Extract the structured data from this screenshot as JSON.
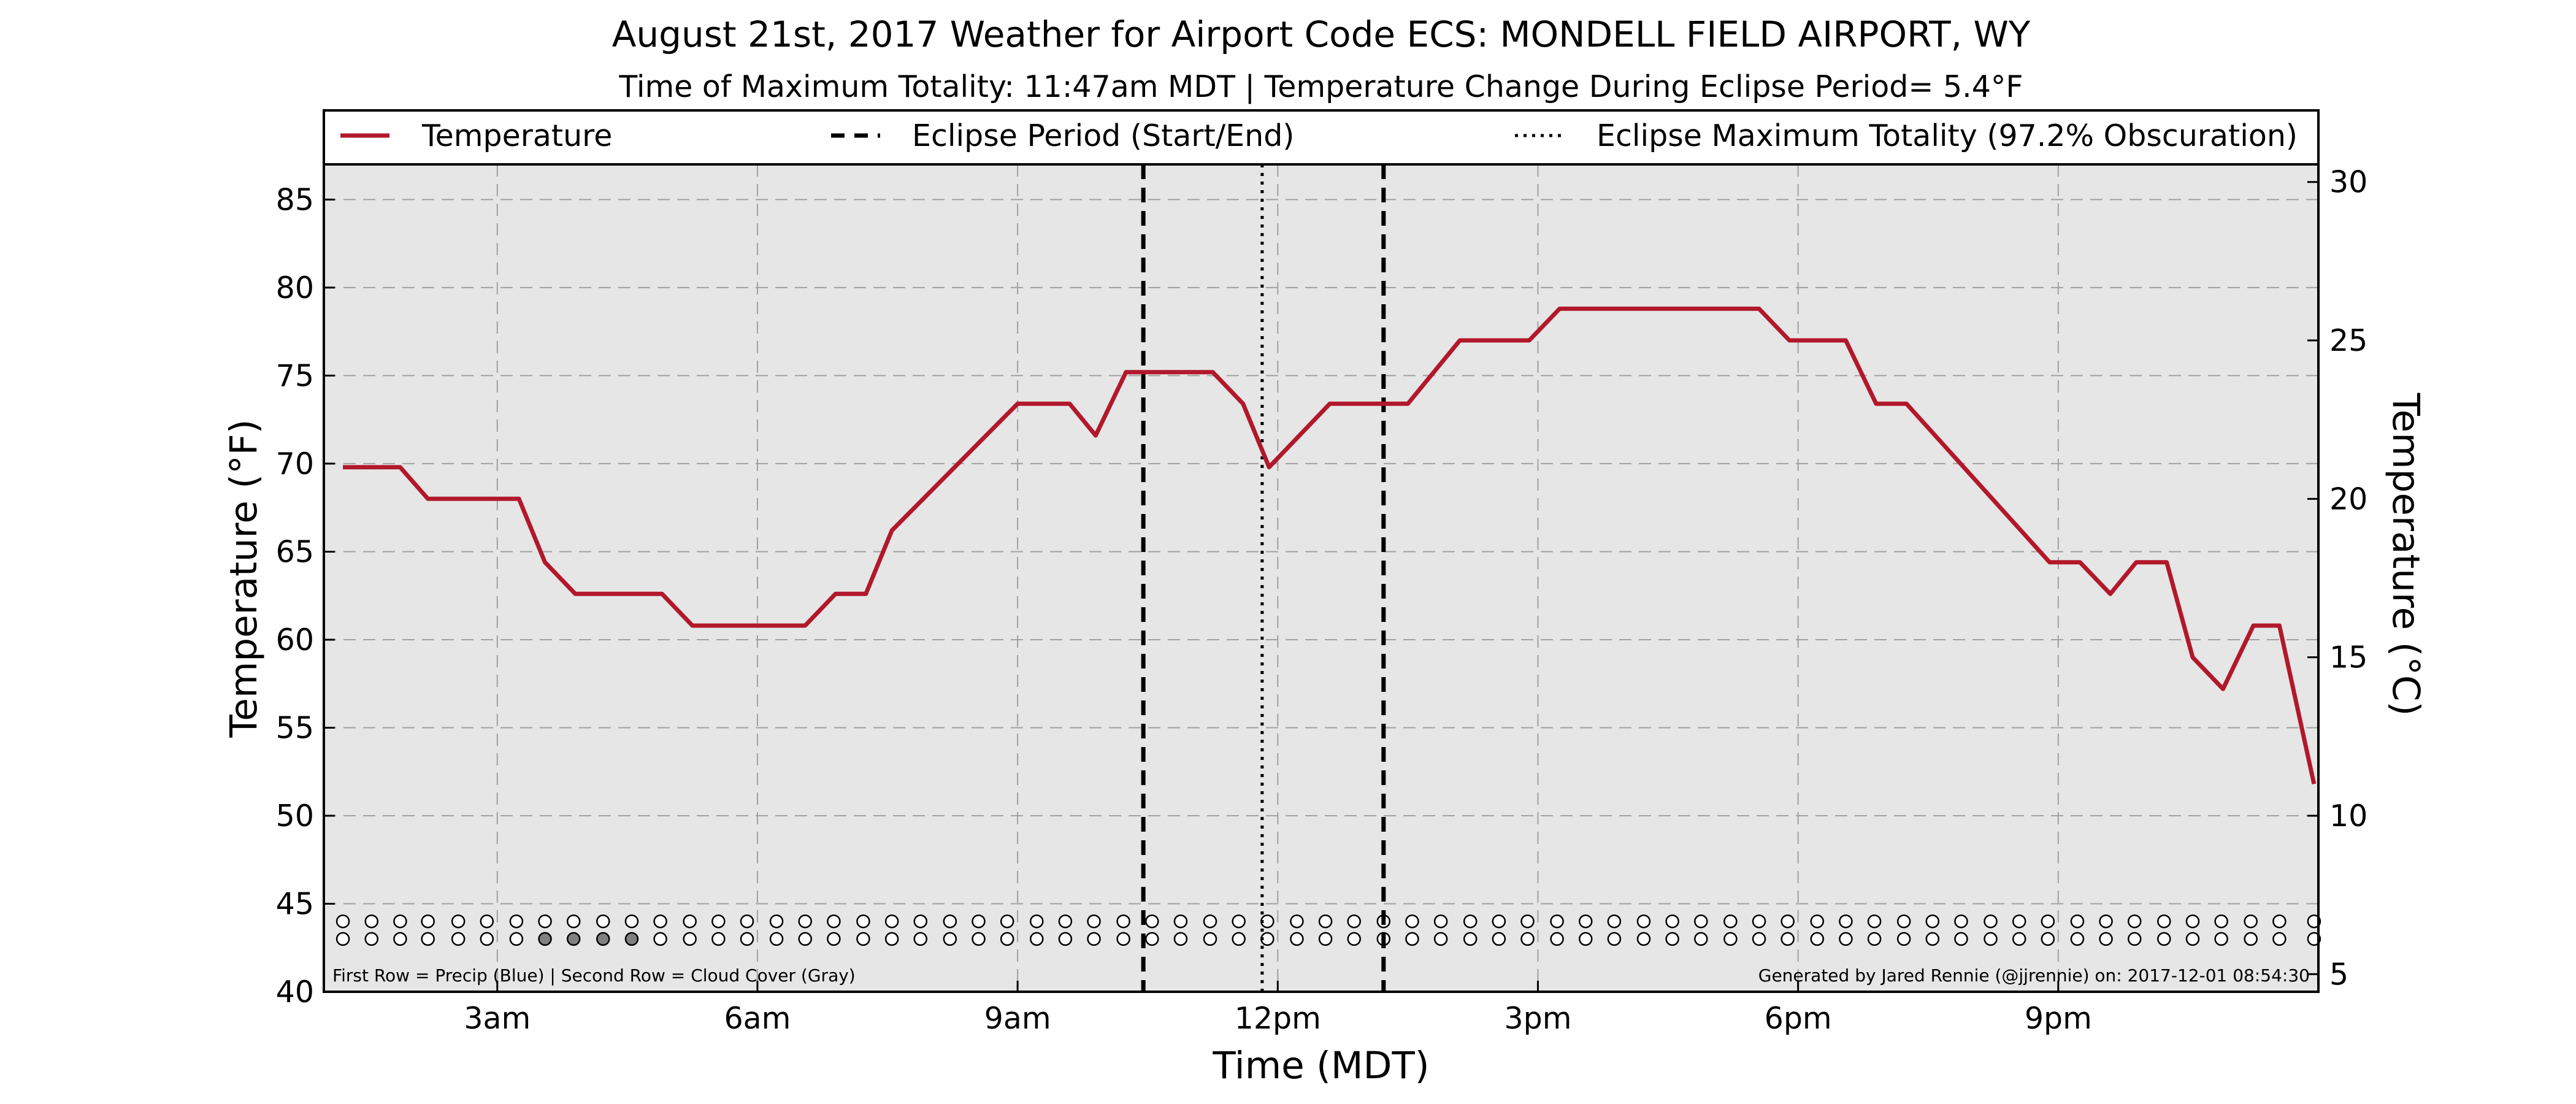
{
  "chart_data": {
    "type": "line",
    "title": "August 21st, 2017 Weather for Airport Code ECS: MONDELL FIELD AIRPORT, WY",
    "subtitle": "Time of Maximum Totality: 11:47am MDT | Temperature Change During Eclipse Period= 5.4°F",
    "xlabel": "Time (MDT)",
    "ylabel": "Temperature (°F)",
    "ylabel_right": "Temperature (°C)",
    "xlim": [
      1.0,
      24.0
    ],
    "ylim": [
      40,
      87
    ],
    "ylim_right": [
      4.444,
      30.556
    ],
    "x_ticks": [
      {
        "value": 3,
        "label": "3am"
      },
      {
        "value": 6,
        "label": "6am"
      },
      {
        "value": 9,
        "label": "9am"
      },
      {
        "value": 12,
        "label": "12pm"
      },
      {
        "value": 15,
        "label": "3pm"
      },
      {
        "value": 18,
        "label": "6pm"
      },
      {
        "value": 21,
        "label": "9pm"
      }
    ],
    "y_ticks": [
      "40",
      "45",
      "50",
      "55",
      "60",
      "65",
      "70",
      "75",
      "80",
      "85"
    ],
    "y_ticks_right": [
      "5",
      "10",
      "15",
      "20",
      "25",
      "30"
    ],
    "grid": true,
    "legend_position": "top",
    "legend": [
      {
        "label": "Temperature",
        "style": "solid"
      },
      {
        "label": "Eclipse Period (Start/End)",
        "style": "dashed"
      },
      {
        "label": "Eclipse Maximum Totality (97.2% Obscuration)",
        "style": "dotted"
      }
    ],
    "series": [
      {
        "name": "Temperature",
        "color": "#b2182b",
        "x": [
          1.22,
          1.88,
          2.2,
          2.55,
          3.25,
          3.55,
          3.9,
          4.9,
          5.25,
          6.55,
          6.9,
          7.25,
          7.55,
          9.0,
          9.6,
          9.9,
          10.25,
          11.25,
          11.6,
          11.9,
          12.6,
          13.5,
          14.1,
          14.9,
          15.25,
          17.55,
          17.9,
          18.55,
          18.9,
          19.25,
          20.9,
          21.25,
          21.6,
          21.9,
          22.25,
          22.55,
          22.9,
          23.25,
          23.55,
          23.95
        ],
        "y": [
          69.8,
          69.8,
          68.0,
          68.0,
          68.0,
          64.4,
          62.6,
          62.6,
          60.8,
          60.8,
          62.6,
          62.6,
          66.2,
          73.4,
          73.4,
          71.6,
          75.2,
          75.2,
          73.4,
          69.8,
          73.4,
          73.4,
          77.0,
          77.0,
          78.8,
          78.8,
          77.0,
          77.0,
          73.4,
          73.4,
          64.4,
          64.4,
          62.6,
          64.4,
          64.4,
          59.0,
          57.2,
          60.8,
          60.8,
          51.8
        ]
      }
    ],
    "eclipse_start": 10.45,
    "eclipse_end": 13.22,
    "eclipse_max": 11.82,
    "dot_rows": {
      "x": [
        1.22,
        1.55,
        1.88,
        2.2,
        2.55,
        2.88,
        3.22,
        3.55,
        3.88,
        4.22,
        4.55,
        4.88,
        5.22,
        5.55,
        5.88,
        6.22,
        6.55,
        6.88,
        7.22,
        7.55,
        7.88,
        8.22,
        8.55,
        8.88,
        9.22,
        9.55,
        9.88,
        10.22,
        10.55,
        10.88,
        11.22,
        11.55,
        11.88,
        12.22,
        12.55,
        12.88,
        13.22,
        13.55,
        13.88,
        14.22,
        14.55,
        14.88,
        15.22,
        15.55,
        15.88,
        16.22,
        16.55,
        16.88,
        17.22,
        17.55,
        17.88,
        18.22,
        18.55,
        18.88,
        19.22,
        19.55,
        19.88,
        20.22,
        20.55,
        20.88,
        21.22,
        21.55,
        21.88,
        22.22,
        22.55,
        22.88,
        23.22,
        23.55,
        23.95
      ],
      "precip_y": 44.0,
      "cloud_y": 43.0,
      "precip_color": "#ffffff",
      "cloud_color": "#ffffff",
      "cloud_filled_indices": [
        7,
        8,
        9,
        10
      ],
      "cloud_filled_color": "#808080"
    },
    "footer_left": "First Row = Precip (Blue) | Second Row = Cloud Cover (Gray)",
    "footer_right": "Generated by Jared Rennie (@jjrennie) on: 2017-12-01 08:54:30",
    "colors": {
      "plot_background": "#e6e6e6",
      "line": "#b2182b",
      "grid": "#a0a0a0"
    }
  }
}
